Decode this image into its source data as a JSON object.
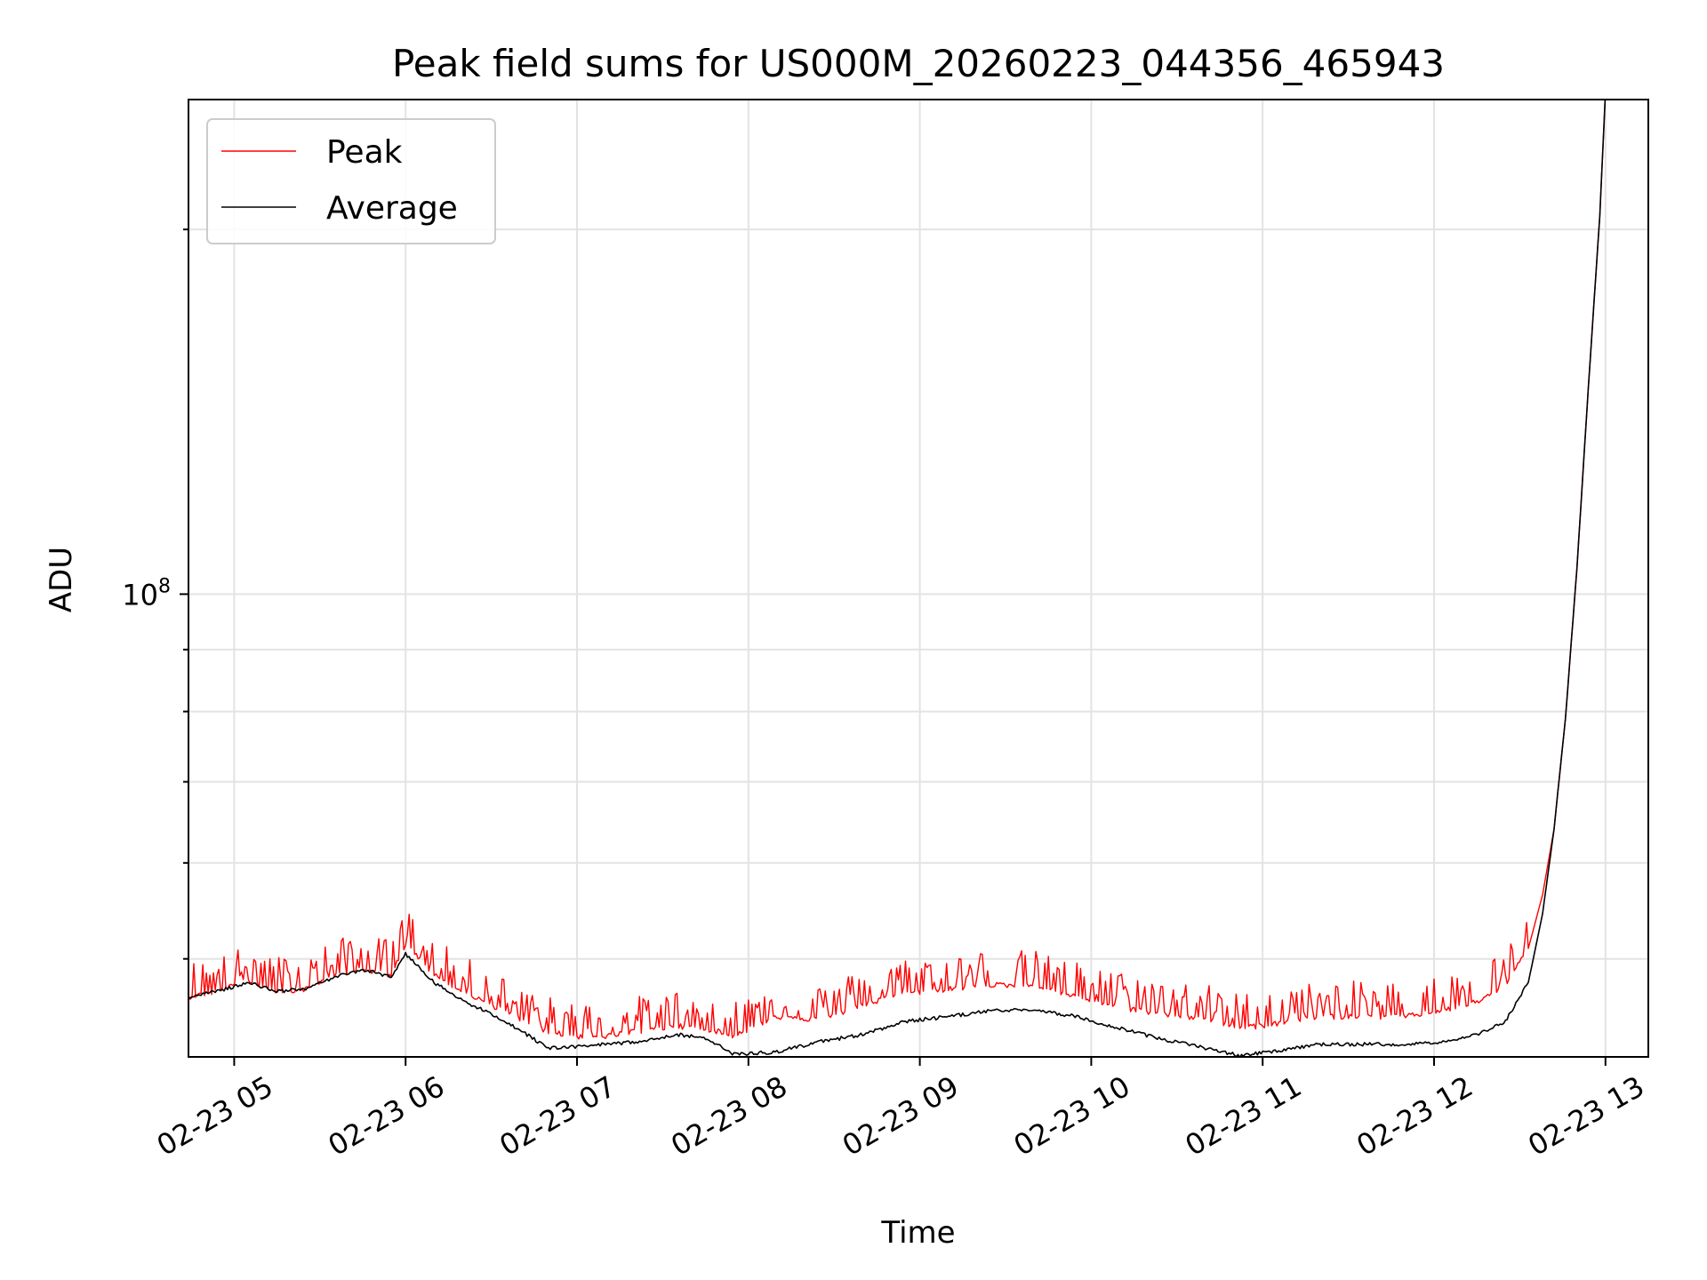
{
  "chart_data": {
    "type": "line",
    "title": "Peak field sums for US000M_20260223_044356_465943",
    "xlabel": "Time",
    "ylabel": "ADU",
    "y_scale": "log",
    "grid": true,
    "legend_position": "top-left",
    "x_tick_labels": [
      "02-23 05",
      "02-23 06",
      "02-23 07",
      "02-23 08",
      "02-23 09",
      "02-23 10",
      "02-23 11",
      "02-23 12",
      "02-23 13"
    ],
    "y_tick_label": {
      "base": "10",
      "exponent": "8"
    },
    "xlim": [
      "2026-02-23 04:44",
      "2026-02-23 13:15"
    ],
    "ylim": [
      41500000,
      256000000
    ],
    "colors": {
      "Peak": "#ff0000",
      "Average": "#000000"
    },
    "series": [
      {
        "name": "Peak",
        "x": [
          "2026-02-23 04:44",
          "2026-02-23 04:54",
          "2026-02-23 05:05",
          "2026-02-23 05:15",
          "2026-02-23 05:25",
          "2026-02-23 05:35",
          "2026-02-23 05:45",
          "2026-02-23 05:55",
          "2026-02-23 06:00",
          "2026-02-23 06:10",
          "2026-02-23 06:20",
          "2026-02-23 06:35",
          "2026-02-23 06:50",
          "2026-02-23 07:05",
          "2026-02-23 07:20",
          "2026-02-23 07:35",
          "2026-02-23 07:45",
          "2026-02-23 07:55",
          "2026-02-23 08:10",
          "2026-02-23 08:25",
          "2026-02-23 08:40",
          "2026-02-23 08:55",
          "2026-02-23 09:10",
          "2026-02-23 09:25",
          "2026-02-23 09:40",
          "2026-02-23 09:55",
          "2026-02-23 10:10",
          "2026-02-23 10:25",
          "2026-02-23 10:40",
          "2026-02-23 10:52",
          "2026-02-23 11:05",
          "2026-02-23 11:20",
          "2026-02-23 11:35",
          "2026-02-23 11:50",
          "2026-02-23 12:05",
          "2026-02-23 12:15",
          "2026-02-23 12:25",
          "2026-02-23 12:33",
          "2026-02-23 12:38",
          "2026-02-23 12:42",
          "2026-02-23 12:46",
          "2026-02-23 12:50",
          "2026-02-23 12:54",
          "2026-02-23 12:58",
          "2026-02-23 13:00"
        ],
        "values": [
          46500000,
          47000000,
          48000000,
          47000000,
          47200000,
          48500000,
          49000000,
          48500000,
          51500000,
          48500000,
          47000000,
          45200000,
          43500000,
          43000000,
          43500000,
          44000000,
          43800000,
          43200000,
          44800000,
          44500000,
          45800000,
          46800000,
          47200000,
          47600000,
          47500000,
          46500000,
          45600000,
          45000000,
          44600000,
          43800000,
          44200000,
          44800000,
          44800000,
          44800000,
          45400000,
          46100000,
          47500000,
          51000000,
          56500000,
          64000000,
          79000000,
          105000000,
          148000000,
          205000000,
          260000000
        ]
      },
      {
        "name": "Average",
        "x": [
          "2026-02-23 04:44",
          "2026-02-23 04:54",
          "2026-02-23 05:05",
          "2026-02-23 05:15",
          "2026-02-23 05:25",
          "2026-02-23 05:35",
          "2026-02-23 05:45",
          "2026-02-23 05:55",
          "2026-02-23 06:00",
          "2026-02-23 06:10",
          "2026-02-23 06:20",
          "2026-02-23 06:35",
          "2026-02-23 06:50",
          "2026-02-23 07:05",
          "2026-02-23 07:20",
          "2026-02-23 07:35",
          "2026-02-23 07:45",
          "2026-02-23 07:55",
          "2026-02-23 08:10",
          "2026-02-23 08:25",
          "2026-02-23 08:40",
          "2026-02-23 08:55",
          "2026-02-23 09:10",
          "2026-02-23 09:25",
          "2026-02-23 09:40",
          "2026-02-23 09:55",
          "2026-02-23 10:10",
          "2026-02-23 10:25",
          "2026-02-23 10:40",
          "2026-02-23 10:52",
          "2026-02-23 11:05",
          "2026-02-23 11:20",
          "2026-02-23 11:35",
          "2026-02-23 11:50",
          "2026-02-23 12:05",
          "2026-02-23 12:15",
          "2026-02-23 12:25",
          "2026-02-23 12:33",
          "2026-02-23 12:38",
          "2026-02-23 12:42",
          "2026-02-23 12:46",
          "2026-02-23 12:50",
          "2026-02-23 12:54",
          "2026-02-23 12:58",
          "2026-02-23 13:00"
        ],
        "values": [
          46500000,
          47000000,
          47800000,
          47000000,
          47200000,
          48300000,
          49000000,
          48300000,
          50500000,
          47800000,
          46200000,
          44400000,
          42200000,
          42400000,
          42700000,
          43300000,
          43000000,
          41700000,
          41900000,
          42700000,
          43300000,
          44400000,
          44800000,
          45300000,
          45400000,
          44800000,
          43800000,
          42900000,
          42200000,
          41600000,
          42000000,
          42500000,
          42500000,
          42500000,
          42700000,
          43300000,
          44400000,
          47800000,
          54500000,
          64000000,
          79000000,
          105000000,
          148000000,
          205000000,
          260000000
        ]
      }
    ]
  }
}
